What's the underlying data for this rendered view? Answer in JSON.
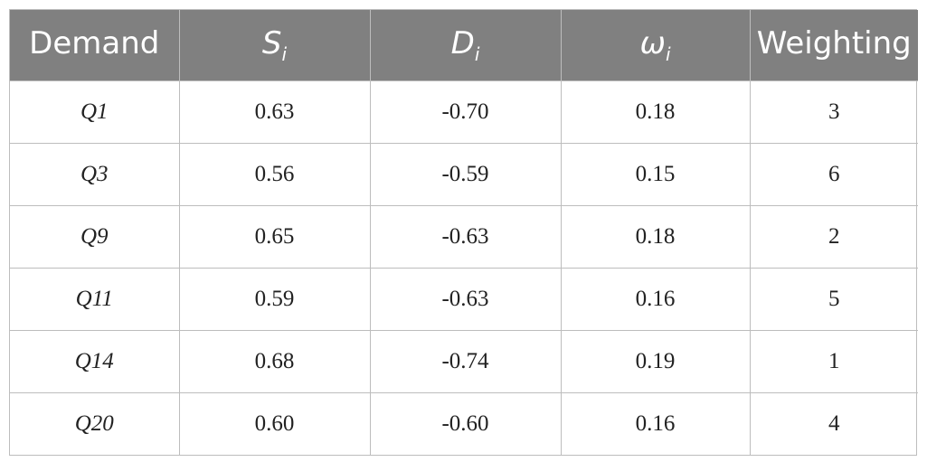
{
  "table": {
    "headers": {
      "demand": "Demand",
      "s_symbol": "S",
      "s_sub": "i",
      "d_symbol": "D",
      "d_sub": "i",
      "w_symbol": "ω",
      "w_sub": "i",
      "weighting": "Weighting"
    },
    "rows": [
      {
        "demand": "Q1",
        "s": "0.63",
        "d": "-0.70",
        "w": "0.18",
        "weighting": "3"
      },
      {
        "demand": "Q3",
        "s": "0.56",
        "d": "-0.59",
        "w": "0.15",
        "weighting": "6"
      },
      {
        "demand": "Q9",
        "s": "0.65",
        "d": "-0.63",
        "w": "0.18",
        "weighting": "2"
      },
      {
        "demand": "Q11",
        "s": "0.59",
        "d": "-0.63",
        "w": "0.16",
        "weighting": "5"
      },
      {
        "demand": "Q14",
        "s": "0.68",
        "d": "-0.74",
        "w": "0.19",
        "weighting": "1"
      },
      {
        "demand": "Q20",
        "s": "0.60",
        "d": "-0.60",
        "w": "0.16",
        "weighting": "4"
      }
    ]
  },
  "colors": {
    "header_bg": "#808080",
    "header_text": "#ffffff",
    "grid": "#bdbdbd"
  }
}
